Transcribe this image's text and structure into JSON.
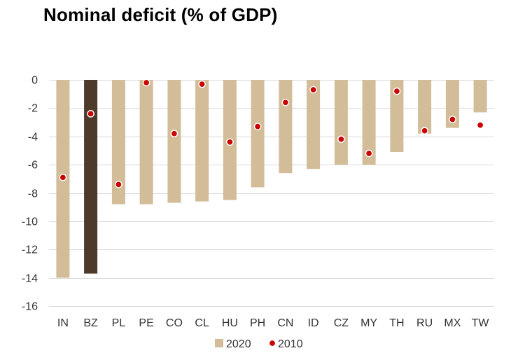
{
  "chart_data": {
    "type": "bar",
    "title": "Nominal deficit (% of GDP)",
    "xlabel": "",
    "ylabel": "",
    "ylim": [
      -16,
      0
    ],
    "yticks": [
      0,
      -2,
      -4,
      -6,
      -8,
      -10,
      -12,
      -14,
      -16
    ],
    "grid": true,
    "legend": "bottom",
    "categories": [
      "IN",
      "BZ",
      "PL",
      "PE",
      "CO",
      "CL",
      "HU",
      "PH",
      "CN",
      "ID",
      "CZ",
      "MY",
      "TH",
      "RU",
      "MX",
      "TW"
    ],
    "highlight_category": "BZ",
    "series": [
      {
        "name": "2020",
        "kind": "bar",
        "color": "#d3bc98",
        "highlight_color": "#4d3a2b",
        "values": [
          -14.0,
          -13.7,
          -8.8,
          -8.8,
          -8.7,
          -8.6,
          -8.5,
          -7.6,
          -6.6,
          -6.3,
          -6.0,
          -6.0,
          -5.1,
          -3.8,
          -3.4,
          -2.3
        ]
      },
      {
        "name": "2010",
        "kind": "marker",
        "color": "#cc0000",
        "values": [
          -6.9,
          -2.4,
          -7.4,
          -0.2,
          -3.8,
          -0.3,
          -4.4,
          -3.3,
          -1.6,
          -0.7,
          -4.2,
          -5.2,
          -0.8,
          -3.6,
          -2.8,
          -3.2
        ]
      }
    ]
  }
}
